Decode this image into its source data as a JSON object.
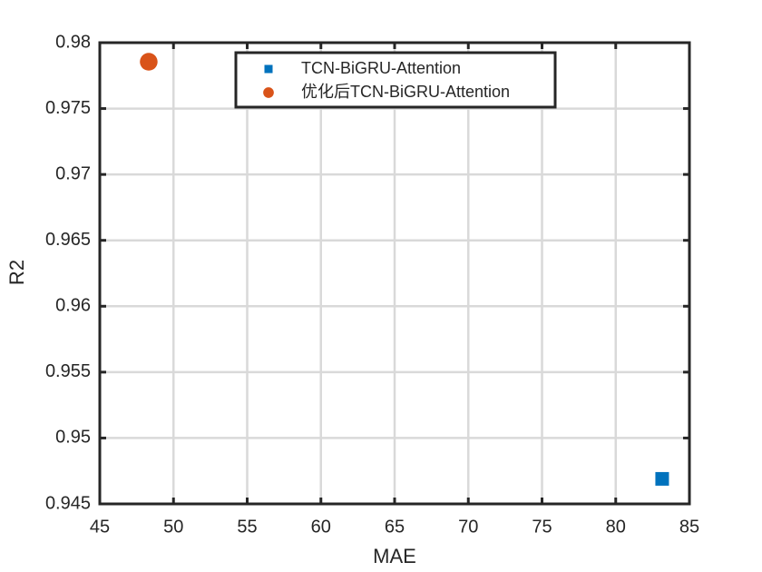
{
  "chart_data": {
    "type": "scatter",
    "x_label": "MAE",
    "y_label": "R2",
    "xlim": [
      45,
      85
    ],
    "xticks": [
      45,
      50,
      55,
      60,
      65,
      70,
      75,
      80,
      85
    ],
    "ylim": [
      0.945,
      0.98
    ],
    "yticks": [
      0.945,
      0.95,
      0.955,
      0.96,
      0.965,
      0.97,
      0.975,
      0.98
    ],
    "grid": true,
    "legend_location": "north",
    "series": [
      {
        "name": "TCN-BiGRU-Attention",
        "color": "#0072bd",
        "marker": "square",
        "x": [
          83.15
        ],
        "values": [
          0.9469
        ]
      },
      {
        "name": "优化后TCN-BiGRU-Attention",
        "color": "#d95319",
        "marker": "circle",
        "x": [
          48.32
        ],
        "values": [
          0.97855
        ]
      }
    ]
  }
}
